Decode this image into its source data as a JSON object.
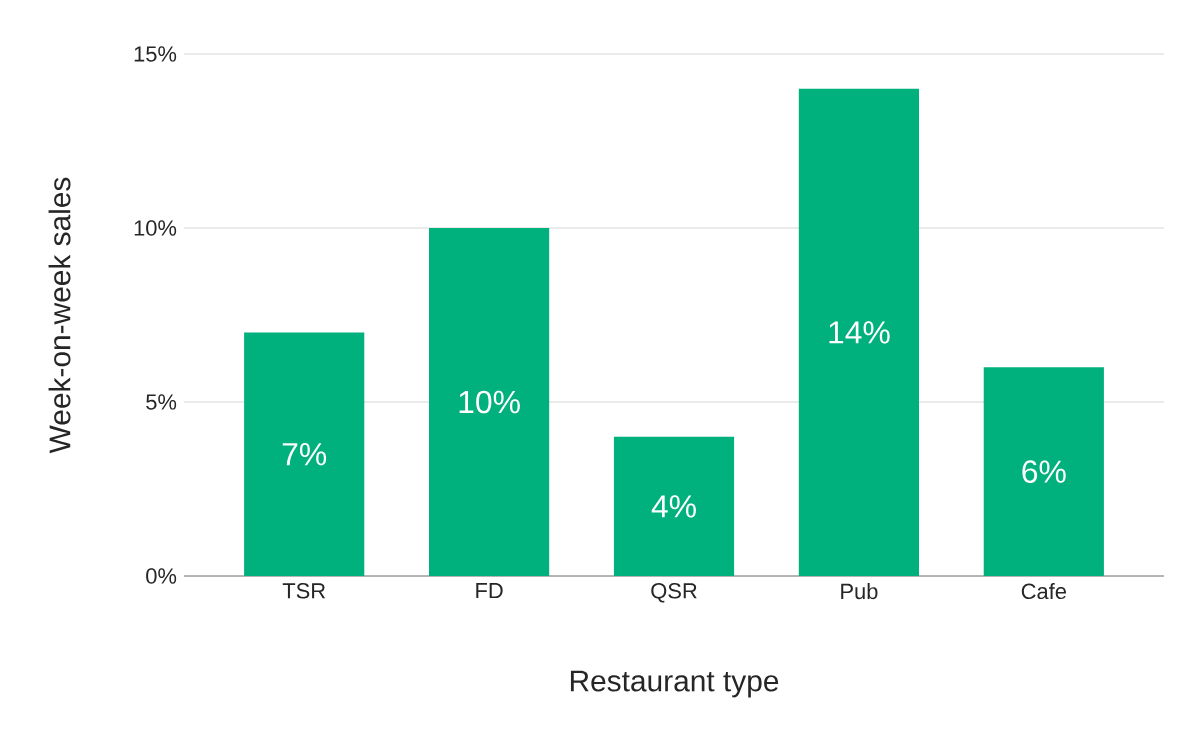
{
  "chart_data": {
    "type": "bar",
    "xlabel": "Restaurant type",
    "ylabel": "Week-on-week sales",
    "categories": [
      "TSR",
      "FD",
      "QSR",
      "Pub",
      "Cafe"
    ],
    "values": [
      7,
      10,
      4,
      14,
      6
    ],
    "value_labels": [
      "7%",
      "10%",
      "4%",
      "14%",
      "6%"
    ],
    "color": "#00b07d",
    "ylim": [
      0,
      15
    ],
    "yticks": [
      {
        "value": 0,
        "label": "0%"
      },
      {
        "value": 5,
        "label": "5%"
      },
      {
        "value": 10,
        "label": "10%"
      },
      {
        "value": 15,
        "label": "15%"
      }
    ],
    "grid": "y"
  }
}
